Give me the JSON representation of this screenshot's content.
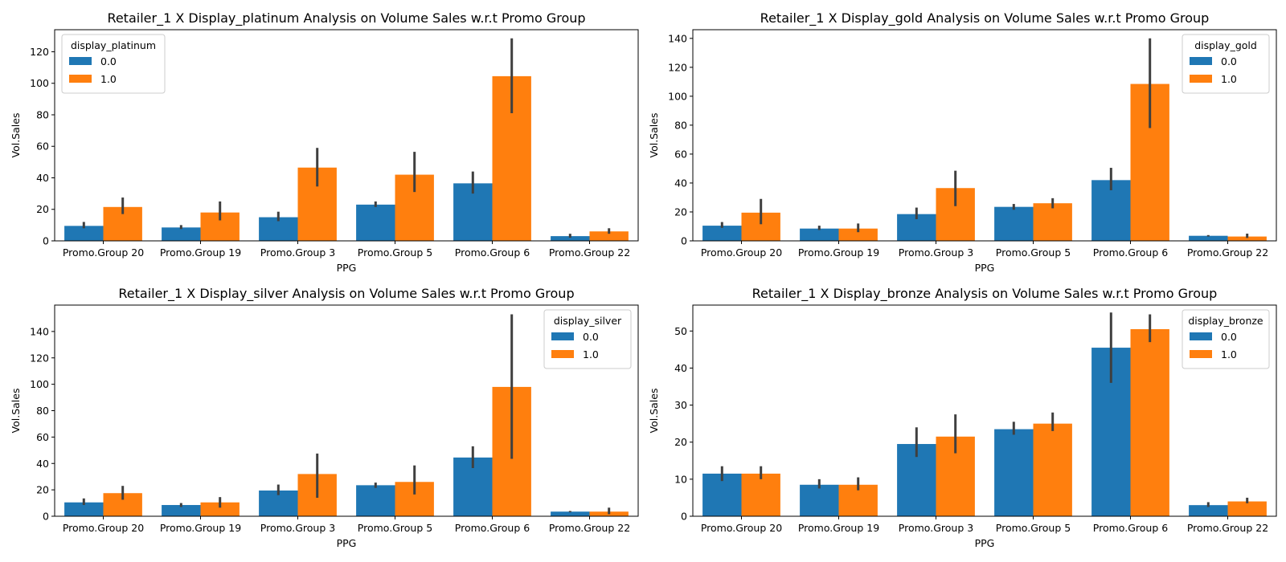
{
  "chart_data": [
    {
      "type": "bar",
      "title": "Retailer_1 X Display_platinum Analysis on Volume Sales w.r.t Promo Group",
      "xlabel": "PPG",
      "ylabel": "Vol.Sales",
      "categories": [
        "Promo.Group 20",
        "Promo.Group 19",
        "Promo.Group 3",
        "Promo.Group 5",
        "Promo.Group 6",
        "Promo.Group 22"
      ],
      "ylim": [
        0,
        134
      ],
      "yticks": [
        0,
        20,
        40,
        60,
        80,
        100,
        120
      ],
      "legend_title": "display_platinum",
      "legend_placement": "top-left",
      "grid": false,
      "series": [
        {
          "name": "0.0",
          "color": "#1f77b4",
          "values": [
            9.5,
            8.5,
            15,
            23,
            36.5,
            3
          ],
          "err_low": [
            8,
            7.5,
            12.5,
            21.5,
            30,
            2
          ],
          "err_high": [
            12,
            10,
            18.5,
            25,
            44,
            4.5
          ]
        },
        {
          "name": "1.0",
          "color": "#ff7f0e",
          "values": [
            21.5,
            18,
            46.5,
            42,
            104.5,
            6
          ],
          "err_low": [
            17,
            13,
            34.5,
            31,
            81,
            4.5
          ],
          "err_high": [
            27.5,
            25,
            59,
            56.5,
            128.5,
            8
          ]
        }
      ]
    },
    {
      "type": "bar",
      "title": "Retailer_1 X Display_gold Analysis on Volume Sales w.r.t Promo Group",
      "xlabel": "PPG",
      "ylabel": "Vol.Sales",
      "categories": [
        "Promo.Group 20",
        "Promo.Group 19",
        "Promo.Group 3",
        "Promo.Group 5",
        "Promo.Group 6",
        "Promo.Group 22"
      ],
      "ylim": [
        0,
        146
      ],
      "yticks": [
        0,
        20,
        40,
        60,
        80,
        100,
        120,
        140
      ],
      "legend_title": "display_gold",
      "legend_placement": "top-right",
      "grid": false,
      "series": [
        {
          "name": "0.0",
          "color": "#1f77b4",
          "values": [
            10.5,
            8.5,
            18.5,
            23.5,
            42,
            3.5
          ],
          "err_low": [
            9,
            7.5,
            15,
            21.5,
            35,
            3
          ],
          "err_high": [
            13,
            10.5,
            23,
            25.5,
            50.5,
            4
          ]
        },
        {
          "name": "1.0",
          "color": "#ff7f0e",
          "values": [
            19.5,
            8.5,
            36.5,
            26,
            108.5,
            3
          ],
          "err_low": [
            11.5,
            6,
            24,
            22.5,
            78,
            2
          ],
          "err_high": [
            29,
            12,
            48.5,
            29.5,
            140,
            5
          ]
        }
      ]
    },
    {
      "type": "bar",
      "title": "Retailer_1 X Display_silver Analysis on Volume Sales w.r.t Promo Group",
      "xlabel": "PPG",
      "ylabel": "Vol.Sales",
      "categories": [
        "Promo.Group 20",
        "Promo.Group 19",
        "Promo.Group 3",
        "Promo.Group 5",
        "Promo.Group 6",
        "Promo.Group 22"
      ],
      "ylim": [
        0,
        160
      ],
      "yticks": [
        0,
        20,
        40,
        60,
        80,
        100,
        120,
        140
      ],
      "legend_title": "display_silver",
      "legend_placement": "top-right",
      "grid": false,
      "series": [
        {
          "name": "0.0",
          "color": "#1f77b4",
          "values": [
            10.5,
            8.5,
            19.5,
            23.5,
            44.5,
            3.5
          ],
          "err_low": [
            8.5,
            7,
            16,
            21.5,
            36.5,
            3
          ],
          "err_high": [
            13.5,
            10,
            24,
            25.5,
            53,
            4
          ]
        },
        {
          "name": "1.0",
          "color": "#ff7f0e",
          "values": [
            17.5,
            10.5,
            32,
            26,
            98,
            3.5
          ],
          "err_low": [
            12.5,
            6.5,
            14,
            16.5,
            43.5,
            1.5
          ],
          "err_high": [
            23,
            14.5,
            47.5,
            38.5,
            153,
            6.5
          ]
        }
      ]
    },
    {
      "type": "bar",
      "title": "Retailer_1 X Display_bronze Analysis on Volume Sales w.r.t Promo Group",
      "xlabel": "PPG",
      "ylabel": "Vol.Sales",
      "categories": [
        "Promo.Group 20",
        "Promo.Group 19",
        "Promo.Group 3",
        "Promo.Group 5",
        "Promo.Group 6",
        "Promo.Group 22"
      ],
      "ylim": [
        0,
        57
      ],
      "yticks": [
        0,
        10,
        20,
        30,
        40,
        50
      ],
      "legend_title": "display_bronze",
      "legend_placement": "top-right",
      "grid": false,
      "series": [
        {
          "name": "0.0",
          "color": "#1f77b4",
          "values": [
            11.5,
            8.5,
            19.5,
            23.5,
            45.5,
            3
          ],
          "err_low": [
            9.5,
            7.5,
            16,
            22,
            36,
            2.5
          ],
          "err_high": [
            13.5,
            10,
            24,
            25.5,
            55,
            3.8
          ]
        },
        {
          "name": "1.0",
          "color": "#ff7f0e",
          "values": [
            11.5,
            8.5,
            21.5,
            25,
            50.5,
            4
          ],
          "err_low": [
            10,
            7,
            17,
            23,
            47,
            3.5
          ],
          "err_high": [
            13.5,
            10.5,
            27.5,
            28,
            54.5,
            5
          ]
        }
      ]
    }
  ]
}
